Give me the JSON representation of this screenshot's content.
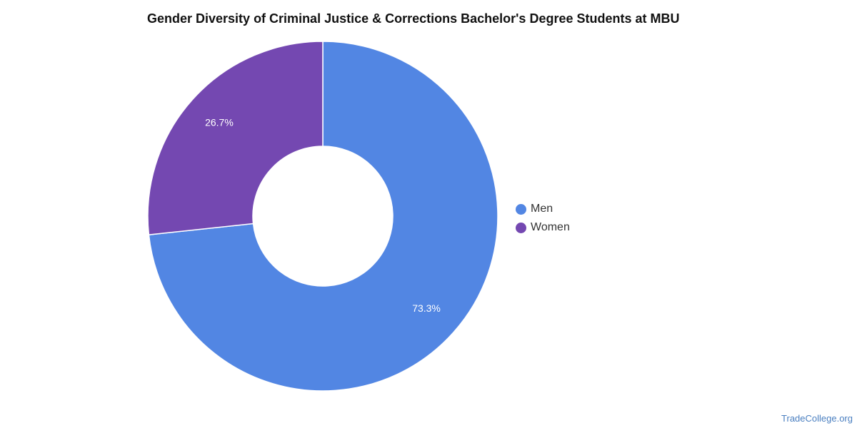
{
  "chart_data": {
    "type": "pie",
    "title": "Gender Diversity of Criminal Justice & Corrections Bachelor's Degree Students at MBU",
    "donut": true,
    "legend_position": "right",
    "categories": [
      "Men",
      "Women"
    ],
    "values": [
      73.3,
      26.7
    ],
    "labels": [
      "73.3%",
      "26.7%"
    ],
    "colors": [
      "#5286e3",
      "#7448b1"
    ]
  },
  "watermark": "TradeCollege.org"
}
